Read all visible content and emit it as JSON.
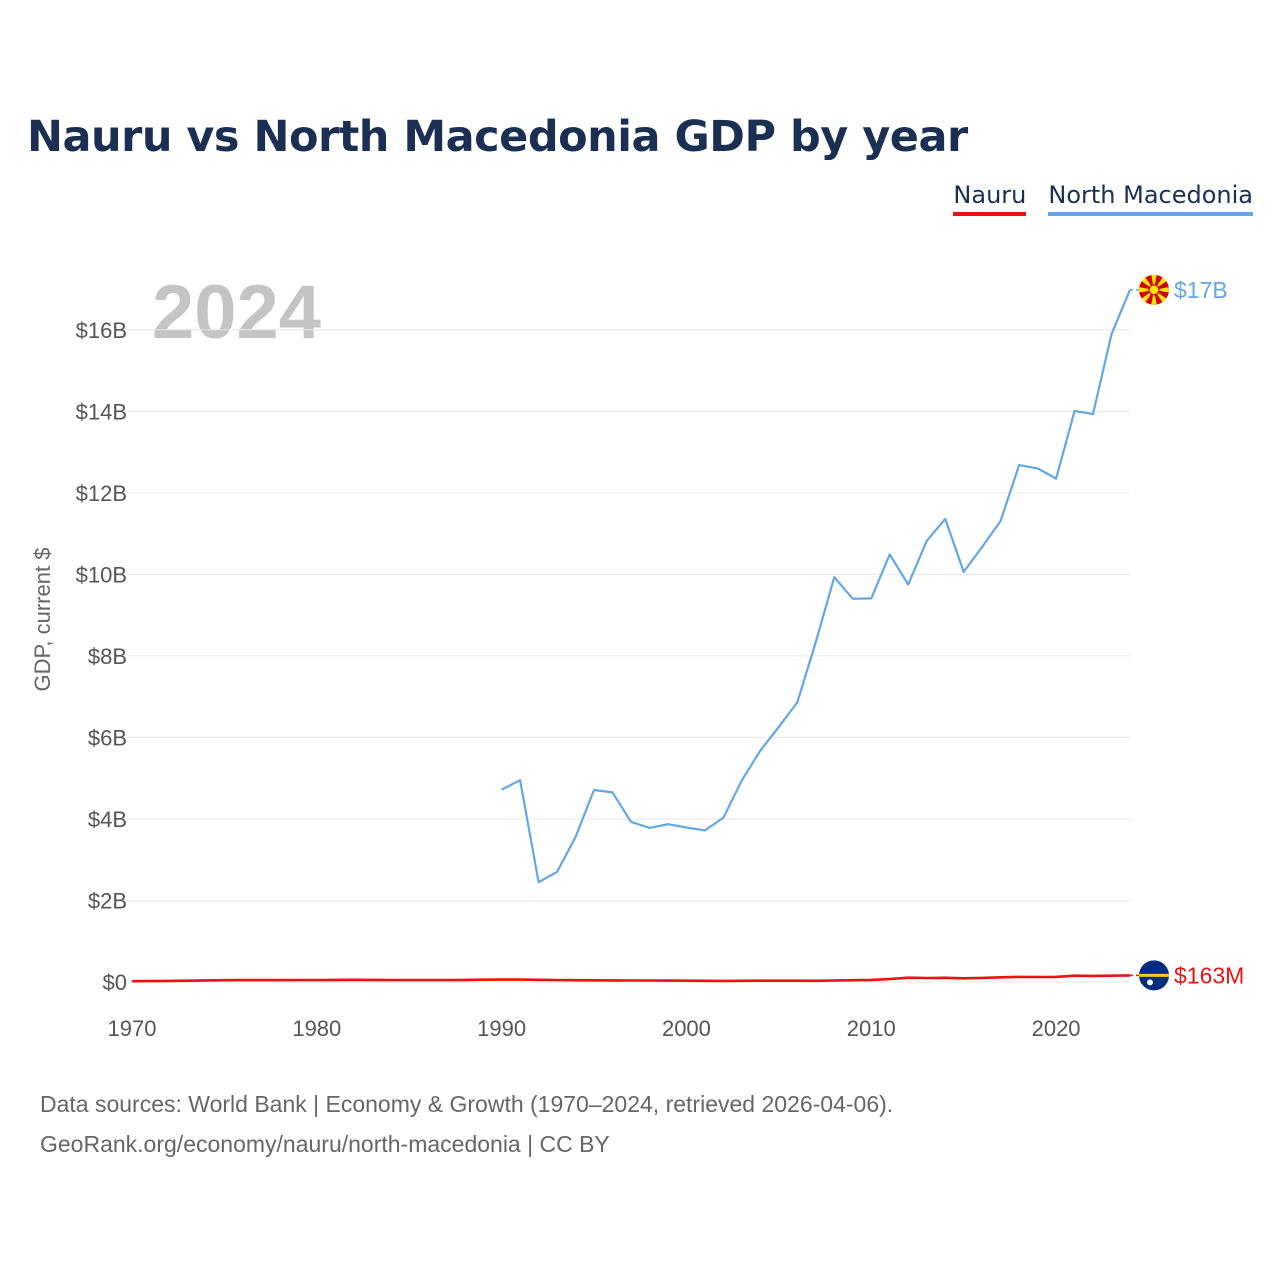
{
  "chart_data": {
    "type": "line",
    "title": "Nauru vs North Macedonia GDP by year",
    "ylabel": "GDP, current $",
    "xlabel": "",
    "current_year": "2024",
    "xlim": [
      1970,
      2024
    ],
    "ylim": [
      0,
      17000000000
    ],
    "x_ticks": [
      {
        "value": 1970,
        "label": "1970"
      },
      {
        "value": 1980,
        "label": "1980"
      },
      {
        "value": 1990,
        "label": "1990"
      },
      {
        "value": 2000,
        "label": "2000"
      },
      {
        "value": 2010,
        "label": "2010"
      },
      {
        "value": 2020,
        "label": "2020"
      }
    ],
    "y_ticks": [
      {
        "value": 0,
        "label": "$0"
      },
      {
        "value": 2000000000,
        "label": "$2B"
      },
      {
        "value": 4000000000,
        "label": "$4B"
      },
      {
        "value": 6000000000,
        "label": "$6B"
      },
      {
        "value": 8000000000,
        "label": "$8B"
      },
      {
        "value": 10000000000,
        "label": "$10B"
      },
      {
        "value": 12000000000,
        "label": "$12B"
      },
      {
        "value": 14000000000,
        "label": "$14B"
      },
      {
        "value": 16000000000,
        "label": "$16B"
      }
    ],
    "legend_position": "top-right",
    "series": [
      {
        "name": "Nauru",
        "color": "#ee1111",
        "end_label": "$163M",
        "flag": "nauru-flag",
        "points": [
          [
            1970,
            20000000.0
          ],
          [
            1971,
            22000000.0
          ],
          [
            1972,
            28000000.0
          ],
          [
            1973,
            32000000.0
          ],
          [
            1974,
            40000000.0
          ],
          [
            1975,
            45000000.0
          ],
          [
            1976,
            46000000.0
          ],
          [
            1977,
            46000000.0
          ],
          [
            1978,
            46000000.0
          ],
          [
            1979,
            48000000.0
          ],
          [
            1980,
            50000000.0
          ],
          [
            1981,
            52000000.0
          ],
          [
            1982,
            54000000.0
          ],
          [
            1983,
            52000000.0
          ],
          [
            1984,
            50000000.0
          ],
          [
            1985,
            48000000.0
          ],
          [
            1986,
            48000000.0
          ],
          [
            1987,
            50000000.0
          ],
          [
            1988,
            52000000.0
          ],
          [
            1989,
            56000000.0
          ],
          [
            1990,
            58000000.0
          ],
          [
            1991,
            58000000.0
          ],
          [
            1992,
            54000000.0
          ],
          [
            1993,
            48000000.0
          ],
          [
            1994,
            44000000.0
          ],
          [
            1995,
            42000000.0
          ],
          [
            1996,
            40000000.0
          ],
          [
            1997,
            38000000.0
          ],
          [
            1998,
            36000000.0
          ],
          [
            1999,
            34000000.0
          ],
          [
            2000,
            32000000.0
          ],
          [
            2001,
            30000000.0
          ],
          [
            2002,
            28000000.0
          ],
          [
            2003,
            30000000.0
          ],
          [
            2004,
            32000000.0
          ],
          [
            2005,
            33000000.0
          ],
          [
            2006,
            32000000.0
          ],
          [
            2007,
            30000000.0
          ],
          [
            2008,
            36000000.0
          ],
          [
            2009,
            44000000.0
          ],
          [
            2010,
            51000000.0
          ],
          [
            2011,
            72000000.0
          ],
          [
            2012,
            105000000.0
          ],
          [
            2013,
            97000000.0
          ],
          [
            2014,
            103000000.0
          ],
          [
            2015,
            90000000.0
          ],
          [
            2016,
            100000000.0
          ],
          [
            2017,
            115000000.0
          ],
          [
            2018,
            126000000.0
          ],
          [
            2019,
            122000000.0
          ],
          [
            2020,
            125000000.0
          ],
          [
            2021,
            155000000.0
          ],
          [
            2022,
            150000000.0
          ],
          [
            2023,
            155000000.0
          ],
          [
            2024,
            163000000.0
          ]
        ]
      },
      {
        "name": "North Macedonia",
        "color": "#63a6e4",
        "end_label": "$17B",
        "flag": "north-macedonia-flag",
        "points": [
          [
            1990,
            4720000000.0
          ],
          [
            1991,
            4950000000.0
          ],
          [
            1992,
            2450000000.0
          ],
          [
            1993,
            2700000000.0
          ],
          [
            1994,
            3560000000.0
          ],
          [
            1995,
            4710000000.0
          ],
          [
            1996,
            4650000000.0
          ],
          [
            1997,
            3930000000.0
          ],
          [
            1998,
            3780000000.0
          ],
          [
            1999,
            3870000000.0
          ],
          [
            2000,
            3790000000.0
          ],
          [
            2001,
            3720000000.0
          ],
          [
            2002,
            4030000000.0
          ],
          [
            2003,
            4950000000.0
          ],
          [
            2004,
            5680000000.0
          ],
          [
            2005,
            6260000000.0
          ],
          [
            2006,
            6860000000.0
          ],
          [
            2007,
            8340000000.0
          ],
          [
            2008,
            9930000000.0
          ],
          [
            2009,
            9400000000.0
          ],
          [
            2010,
            9410000000.0
          ],
          [
            2011,
            10490000000.0
          ],
          [
            2012,
            9750000000.0
          ],
          [
            2013,
            10820000000.0
          ],
          [
            2014,
            11360000000.0
          ],
          [
            2015,
            10060000000.0
          ],
          [
            2016,
            10670000000.0
          ],
          [
            2017,
            11310000000.0
          ],
          [
            2018,
            12680000000.0
          ],
          [
            2019,
            12600000000.0
          ],
          [
            2020,
            12350000000.0
          ],
          [
            2021,
            14010000000.0
          ],
          [
            2022,
            13930000000.0
          ],
          [
            2023,
            15890000000.0
          ],
          [
            2024,
            16980000000.0
          ]
        ]
      }
    ]
  },
  "source": {
    "line1": "Data sources: World Bank | Economy & Growth (1970–2024, retrieved 2026-04-06).",
    "line2": "GeoRank.org/economy/nauru/north-macedonia | CC BY"
  }
}
